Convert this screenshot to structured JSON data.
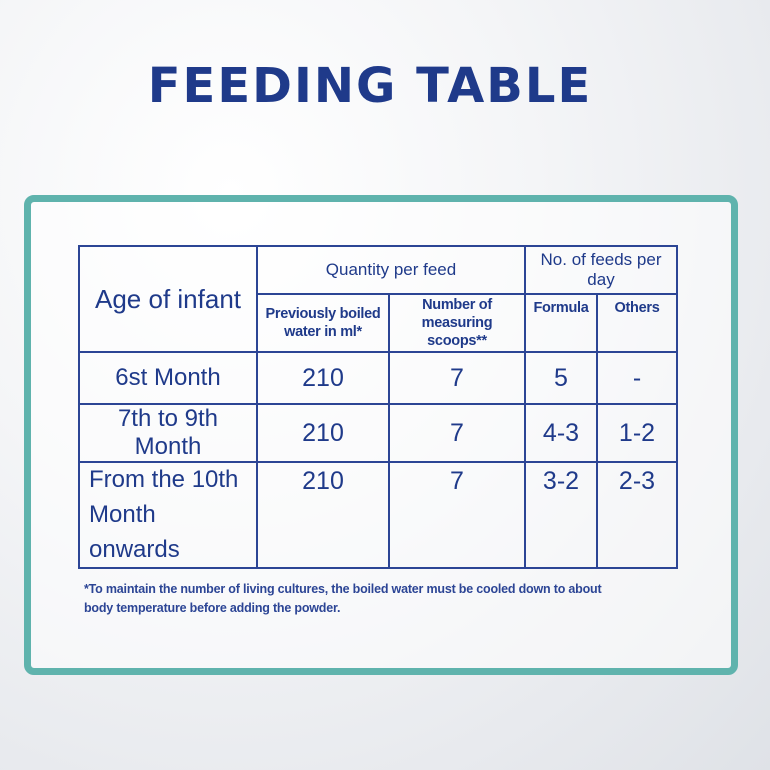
{
  "title": "FEEDING TABLE",
  "table": {
    "age_header": "Age of infant",
    "quantity_header": "Quantity per feed",
    "feeds_header": "No. of feeds per day",
    "water_header": "Previously boiled water in ml*",
    "scoops_header": "Number of measuring scoops**",
    "formula_header": "Formula",
    "others_header": "Others",
    "rows": [
      {
        "age": "6st Month",
        "water": "210",
        "scoops": "7",
        "formula": "5",
        "others": "-"
      },
      {
        "age": "7th to 9th Month",
        "water": "210",
        "scoops": "7",
        "formula": "4-3",
        "others": "1-2"
      },
      {
        "age": "From the 10th Month onwards",
        "age_line1": "From the 10th",
        "age_line2": "Month onwards",
        "water": "210",
        "scoops": "7",
        "formula": "3-2",
        "others": "2-3"
      }
    ]
  },
  "footnote": {
    "line1": "*To maintain the number of living cultures, the boiled water must be cooled down to about",
    "line2": "body temperature before adding the powder."
  },
  "colors": {
    "text_blue": "#1f3a8a",
    "frame_teal": "#5fb3ad",
    "table_border": "#2c4595"
  }
}
